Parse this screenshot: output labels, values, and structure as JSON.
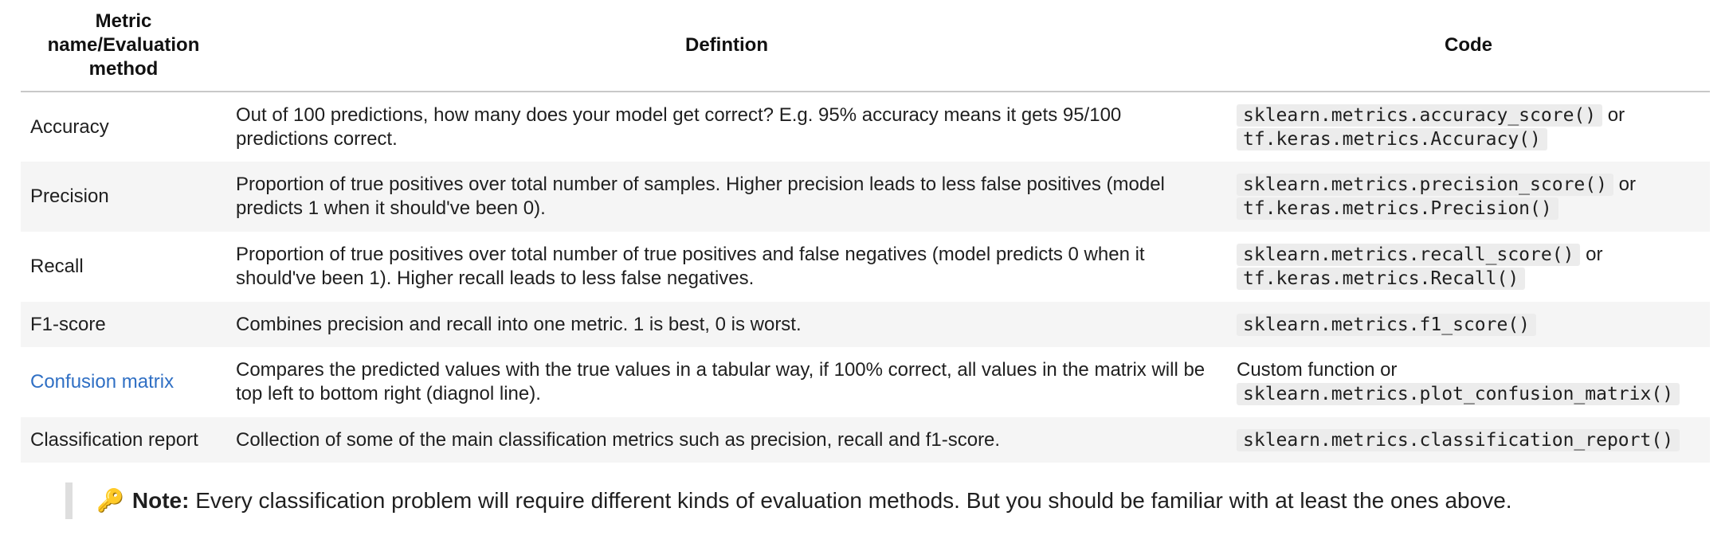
{
  "table": {
    "headers": {
      "metric": "Metric name/Evaluation method",
      "definition": "Defintion",
      "code": "Code"
    },
    "rows": [
      {
        "metric": "Accuracy",
        "definition": "Out of 100 predictions, how many does your model get correct? E.g. 95% accuracy means it gets 95/100 predictions correct.",
        "code_prefix": "",
        "code1": "sklearn.metrics.accuracy_score()",
        "code_sep": " or ",
        "code2": "tf.keras.metrics.Accuracy()"
      },
      {
        "metric": "Precision",
        "definition": "Proportion of true positives over total number of samples. Higher precision leads to less false positives (model predicts 1 when it should've been 0).",
        "code_prefix": "",
        "code1": "sklearn.metrics.precision_score()",
        "code_sep": " or ",
        "code2": "tf.keras.metrics.Precision()"
      },
      {
        "metric": "Recall",
        "definition": "Proportion of true positives over total number of true positives and false negatives (model predicts 0 when it should've been 1). Higher recall leads to less false negatives.",
        "code_prefix": "",
        "code1": "sklearn.metrics.recall_score()",
        "code_sep": " or ",
        "code2": "tf.keras.metrics.Recall()"
      },
      {
        "metric": "F1-score",
        "definition": "Combines precision and recall into one metric. 1 is best, 0 is worst.",
        "code1": "sklearn.metrics.f1_score()"
      },
      {
        "metric": "Confusion matrix",
        "definition": "Compares the predicted values with the true values in a tabular way, if 100% correct, all values in the matrix will be top left to bottom right (diagnol line).",
        "code_prefix": "Custom function or",
        "code1": "sklearn.metrics.plot_confusion_matrix()"
      },
      {
        "metric": "Classification report",
        "definition": "Collection of some of the main classification metrics such as precision, recall and f1-score.",
        "code1": "sklearn.metrics.classification_report()"
      }
    ]
  },
  "note": {
    "icon": "key-icon",
    "icon_glyph": "🔑",
    "label": "Note:",
    "text": " Every classification problem will require different kinds of evaluation methods. But you should be familiar with at least the ones above."
  },
  "colors": {
    "link": "#2f6fc4",
    "row_alt": "#f5f5f5",
    "code_bg": "#ececec"
  }
}
